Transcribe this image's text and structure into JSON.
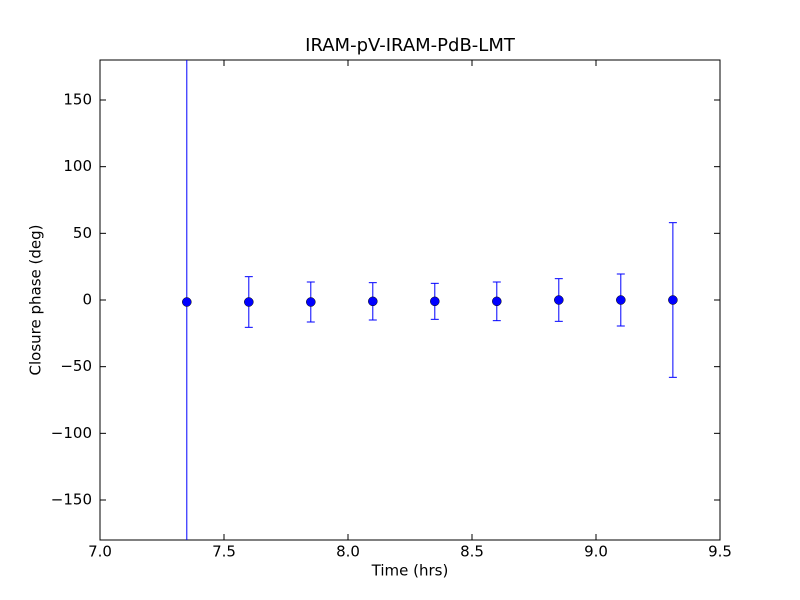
{
  "chart_data": {
    "type": "errorbar",
    "title": "IRAM-pV-IRAM-PdB-LMT",
    "xlabel": "Time (hrs)",
    "ylabel": "Closure phase (deg)",
    "series": [
      {
        "color": "#0000ff",
        "x": [
          7.35,
          7.6,
          7.85,
          8.1,
          8.35,
          8.6,
          8.85,
          9.1,
          9.31
        ],
        "values": [
          -1.5,
          -1.5,
          -1.5,
          -1,
          -1,
          -1,
          0,
          0,
          0
        ],
        "errors": [
          200,
          19,
          15,
          14,
          13.5,
          14.5,
          16,
          19.5,
          58
        ]
      }
    ],
    "xlim": [
      7.0,
      9.5
    ],
    "xticks": [
      {
        "value": 7.0,
        "label": "7.0"
      },
      {
        "value": 7.5,
        "label": "7.5"
      },
      {
        "value": 8.0,
        "label": "8.0"
      },
      {
        "value": 8.5,
        "label": "8.5"
      },
      {
        "value": 9.0,
        "label": "9.0"
      },
      {
        "value": 9.5,
        "label": "9.5"
      }
    ],
    "ylim": [
      -180,
      180
    ],
    "yticks": [
      {
        "value": -150,
        "label": "−150"
      },
      {
        "value": -100,
        "label": "−100"
      },
      {
        "value": -50,
        "label": "−50"
      },
      0,
      50,
      100,
      150
    ],
    "grid": false
  }
}
